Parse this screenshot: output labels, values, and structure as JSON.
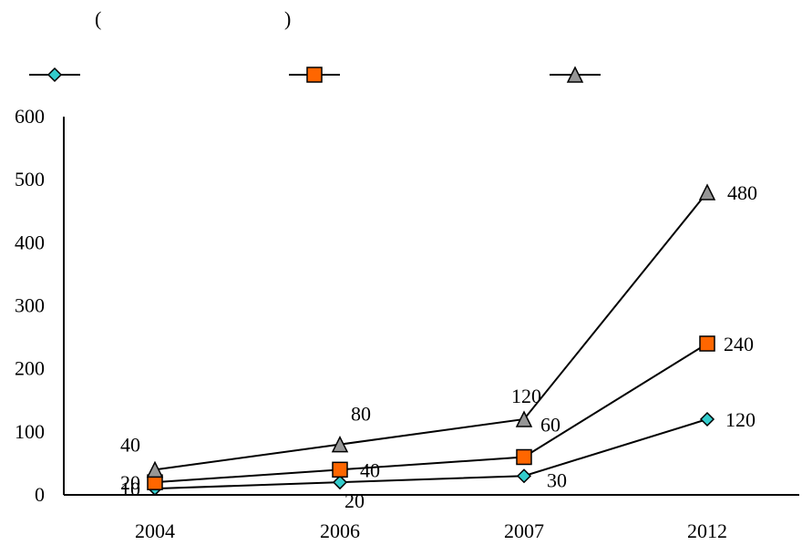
{
  "title": {
    "open": "(",
    "close": ")"
  },
  "chart_data": {
    "type": "line",
    "categories": [
      "2004",
      "2006",
      "2007",
      "2012"
    ],
    "ylim": [
      0,
      600
    ],
    "yticks": [
      "0",
      "100",
      "200",
      "300",
      "400",
      "500",
      "600"
    ],
    "grid": false,
    "legend_position": "top",
    "series": [
      {
        "marker": "diamond",
        "color": "#33cccc",
        "values": [
          10,
          20,
          30,
          120
        ]
      },
      {
        "marker": "square",
        "color": "#ff6600",
        "values": [
          20,
          40,
          60,
          240
        ]
      },
      {
        "marker": "triangle",
        "color": "#969696",
        "values": [
          40,
          80,
          120,
          480
        ]
      }
    ],
    "data_labels": [
      [
        "10",
        "20",
        "30",
        "120"
      ],
      [
        "20",
        "40",
        "60",
        "240"
      ],
      [
        "40",
        "80",
        "120",
        "480"
      ]
    ]
  }
}
